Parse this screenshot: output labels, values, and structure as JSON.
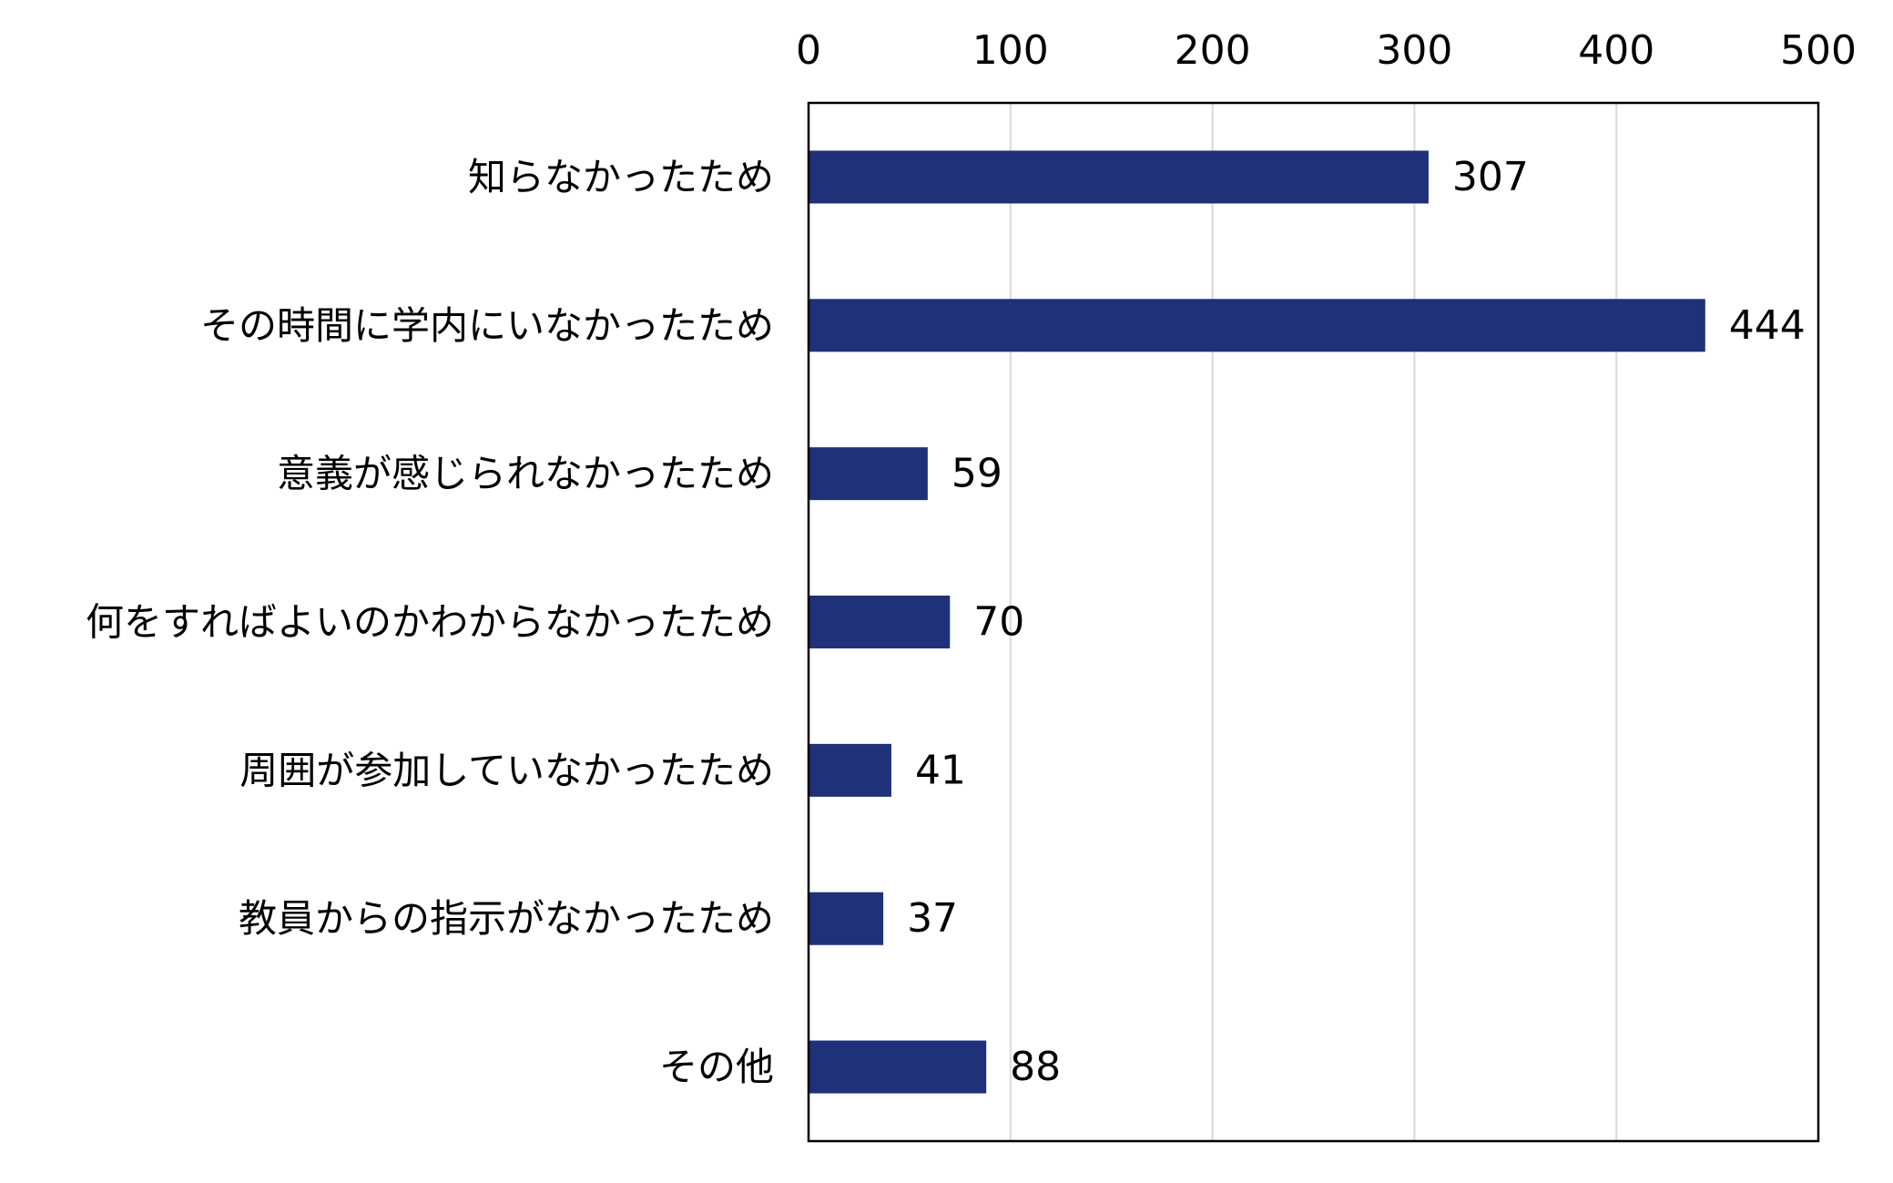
{
  "chart_data": {
    "type": "bar",
    "orientation": "horizontal",
    "title": "",
    "xlabel": "",
    "ylabel": "",
    "xlim": [
      0,
      500
    ],
    "x_ticks": [
      0,
      100,
      200,
      300,
      400,
      500
    ],
    "x_axis_position": "top",
    "grid": true,
    "legend": "none",
    "bar_color": "#1f3178",
    "categories": [
      "知らなかったため",
      "その時間に学内にいなかったため",
      "意義が感じられなかったため",
      "何をすればよいのかわからなかったため",
      "周囲が参加していなかったため",
      "教員からの指示がなかったため",
      "その他"
    ],
    "values": [
      307,
      444,
      59,
      70,
      41,
      37,
      88
    ],
    "data_labels": [
      "307",
      "444",
      "59",
      "70",
      "41",
      "37",
      "88"
    ]
  }
}
